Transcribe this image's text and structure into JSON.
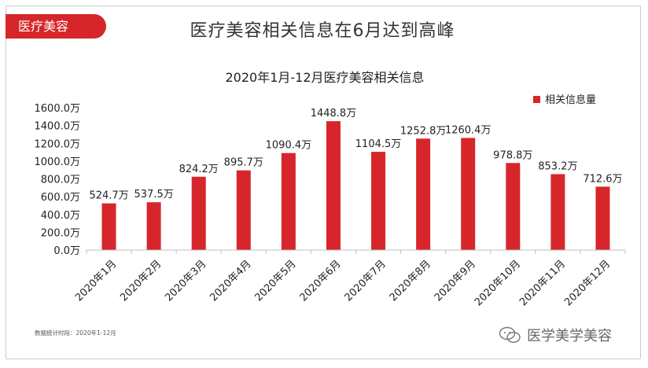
{
  "header": {
    "tag_label": "医疗美容",
    "title": "医疗美容相关信息在6月达到高峰"
  },
  "footnote": "数据统计时段：2020年1-12月",
  "watermark": {
    "text": "医学美学美容",
    "icon": "wechat-icon"
  },
  "colors": {
    "bar": "#d7262b",
    "accent": "#d7262b"
  },
  "chart_data": {
    "type": "bar",
    "title": "2020年1月-12月医疗美容相关信息",
    "categories": [
      "2020年1月",
      "2020年2月",
      "2020年3月",
      "2020年4月",
      "2020年5月",
      "2020年6月",
      "2020年7月",
      "2020年8月",
      "2020年9月",
      "2020年10月",
      "2020年11月",
      "2020年12月"
    ],
    "series": [
      {
        "name": "相关信息量",
        "values": [
          524.7,
          537.5,
          824.2,
          895.7,
          1090.4,
          1448.8,
          1104.5,
          1252.8,
          1260.4,
          978.8,
          853.2,
          712.6
        ],
        "data_labels": [
          "524.7万",
          "537.5万",
          "824.2万",
          "895.7万",
          "1090.4万",
          "1448.8万",
          "1104.5万",
          "1252.8万",
          "1260.4万",
          "978.8万",
          "853.2万",
          "712.6万"
        ]
      }
    ],
    "yticks": [
      "0.0万",
      "200.0万",
      "400.0万",
      "600.0万",
      "800.0万",
      "1000.0万",
      "1200.0万",
      "1400.0万",
      "1600.0万"
    ],
    "ylim": [
      0,
      1600
    ],
    "legend_position": "top-right",
    "grid": false
  }
}
